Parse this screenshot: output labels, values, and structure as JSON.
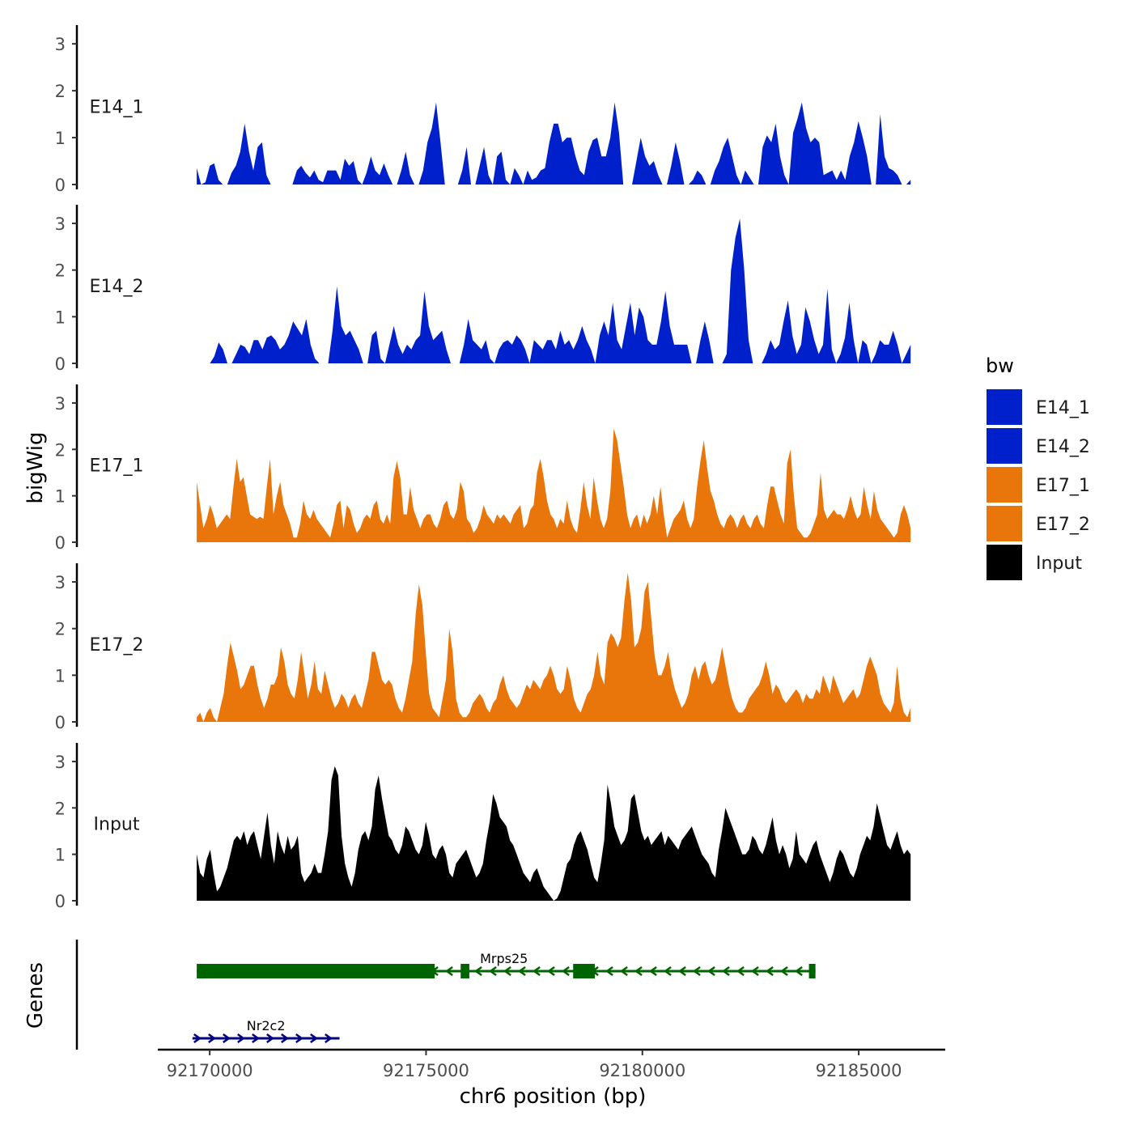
{
  "chart_data": {
    "type": "area",
    "figure_labels": {
      "ylabel": "bigWig",
      "genes_label": "Genes",
      "xlabel": "chr6 position (bp)",
      "legend_title": "bw"
    },
    "x_axis": {
      "range": [
        92168800,
        92187000
      ],
      "ticks": [
        92170000,
        92175000,
        92180000,
        92185000
      ],
      "tick_labels": [
        "92170000",
        "92175000",
        "92180000",
        "92185000"
      ]
    },
    "y_axis": {
      "range": [
        0,
        3.4
      ],
      "ticks": [
        0,
        1,
        2,
        3
      ],
      "tick_labels": [
        "0",
        "1",
        "2",
        "3"
      ]
    },
    "track_start": 92169700,
    "track_end": 92186200,
    "legend": [
      {
        "name": "E14_1",
        "color": "#0020cc"
      },
      {
        "name": "E14_2",
        "color": "#0020cc"
      },
      {
        "name": "E17_1",
        "color": "#e8760a"
      },
      {
        "name": "E17_2",
        "color": "#e8760a"
      },
      {
        "name": "Input",
        "color": "#000000"
      }
    ],
    "series": [
      {
        "name": "E14_1",
        "color": "#0020cc",
        "values": [
          0.35,
          0,
          0.05,
          0.4,
          0.45,
          0.1,
          0,
          0,
          0.25,
          0.4,
          0.7,
          1.3,
          0.7,
          0.3,
          0.8,
          0.9,
          0.2,
          0,
          0,
          0,
          0,
          0,
          0,
          0.3,
          0.4,
          0.25,
          0.15,
          0.3,
          0.1,
          0.05,
          0.3,
          0.3,
          0.3,
          0.1,
          0.55,
          0.4,
          0.5,
          0.1,
          0,
          0.25,
          0.6,
          0.3,
          0.2,
          0.45,
          0.2,
          0,
          0,
          0.3,
          0.7,
          0.2,
          0,
          0,
          0.3,
          0.9,
          1.2,
          1.75,
          0.9,
          0,
          0,
          0,
          0,
          0.3,
          0.8,
          0,
          0,
          0.4,
          0.8,
          0.2,
          0,
          0.6,
          0.7,
          0.1,
          0,
          0.35,
          0.2,
          0,
          0.3,
          0.1,
          0.15,
          0.3,
          0.35,
          0.9,
          1.3,
          1.3,
          0.9,
          1.0,
          1.0,
          0.6,
          0.3,
          0.2,
          0.7,
          0.95,
          1.0,
          0.6,
          0.6,
          1.0,
          1.75,
          1.1,
          0,
          0,
          0,
          0.5,
          1.0,
          0.6,
          0.4,
          0.5,
          0.2,
          0,
          0,
          0.4,
          0.9,
          0.5,
          0,
          0,
          0.1,
          0.3,
          0.2,
          0,
          0,
          0.3,
          0.5,
          0.8,
          1.0,
          0.6,
          0.2,
          0,
          0.3,
          0.15,
          0,
          0,
          0.8,
          1.05,
          0.9,
          1.3,
          0.6,
          0.2,
          0,
          1.1,
          1.4,
          1.75,
          1.2,
          0.9,
          1.0,
          0.9,
          0.2,
          0.25,
          0.3,
          0.1,
          0.3,
          0.1,
          0.6,
          0.9,
          1.35,
          1.0,
          0.6,
          0,
          0,
          1.5,
          0.6,
          0.35,
          0.3,
          0.2,
          0,
          0,
          0.1
        ]
      },
      {
        "name": "E14_2",
        "color": "#0020cc",
        "values": [
          0,
          0,
          0,
          0,
          0.15,
          0.45,
          0.3,
          0,
          0,
          0.2,
          0.4,
          0.35,
          0.2,
          0.5,
          0.5,
          0.3,
          0.55,
          0.6,
          0.5,
          0.3,
          0.4,
          0.6,
          0.9,
          0.75,
          0.6,
          0.95,
          0.4,
          0.1,
          0,
          0,
          0,
          0.7,
          1.65,
          0.8,
          0.6,
          0.7,
          0.5,
          0.3,
          0,
          0,
          0.6,
          0.7,
          0.1,
          0,
          0.4,
          0.8,
          0.4,
          0.2,
          0.4,
          0.3,
          0.5,
          0.6,
          1.55,
          0.8,
          0.5,
          0.6,
          0.7,
          0.3,
          0,
          0,
          0,
          0.4,
          0.95,
          0.5,
          0.4,
          0.3,
          0.5,
          0.1,
          0,
          0.3,
          0.45,
          0.5,
          0.4,
          0.6,
          0.5,
          0.3,
          0,
          0.5,
          0.4,
          0.3,
          0.5,
          0.5,
          0.3,
          0.7,
          0.4,
          0.5,
          0.3,
          0.5,
          0.8,
          0.5,
          0.3,
          0,
          0.6,
          0.9,
          0.6,
          1.3,
          0.5,
          0.3,
          0.8,
          1.3,
          0.6,
          1.2,
          1.0,
          0.5,
          0.4,
          0.4,
          0.9,
          1.55,
          0.8,
          0.4,
          0.4,
          0.4,
          0.4,
          0,
          0,
          0.5,
          0.9,
          0.5,
          0,
          0,
          0,
          0.2,
          2.0,
          2.7,
          3.1,
          2.0,
          0.5,
          0,
          0,
          0,
          0.2,
          0.5,
          0.3,
          0.4,
          0.9,
          1.35,
          0.6,
          0.2,
          0.4,
          1.2,
          0.9,
          0.5,
          0.2,
          0.4,
          1.6,
          0.3,
          0,
          0.2,
          0.55,
          1.3,
          0.5,
          0,
          0.5,
          0.4,
          0,
          0.2,
          0.5,
          0.4,
          0.4,
          0.7,
          0.4,
          0,
          0.2,
          0.4
        ]
      },
      {
        "name": "E17_1",
        "color": "#e8760a",
        "values": [
          1.3,
          0.8,
          0.3,
          0.5,
          0.8,
          0.6,
          0.3,
          0.4,
          0.5,
          0.6,
          0.5,
          1.2,
          1.8,
          1.3,
          1.4,
          1.0,
          0.6,
          0.55,
          0.5,
          0.55,
          0.5,
          1.2,
          1.8,
          0.6,
          1.0,
          1.3,
          0.8,
          0.6,
          0.4,
          0.1,
          0.1,
          0.4,
          0.9,
          0.6,
          0.5,
          0.7,
          0.5,
          0.4,
          0.3,
          0.2,
          0.1,
          0.4,
          0.8,
          0.9,
          0.3,
          0.8,
          0.7,
          0.4,
          0.2,
          0.3,
          0.5,
          0.6,
          0.5,
          0.8,
          0.9,
          0.5,
          0.4,
          0.6,
          0.4,
          1.4,
          1.75,
          1.4,
          0.6,
          0.6,
          1.2,
          0.7,
          0.5,
          0.3,
          0.5,
          0.6,
          0.6,
          0.4,
          0.3,
          0.5,
          0.8,
          0.9,
          0.6,
          0.5,
          0.7,
          1.3,
          1.1,
          0.5,
          0.4,
          0.2,
          0.3,
          0.5,
          0.8,
          0.6,
          0.5,
          0.4,
          0.6,
          0.5,
          0.6,
          0.5,
          0.4,
          0.6,
          0.7,
          0.8,
          0.3,
          0.4,
          0.7,
          0.8,
          1.5,
          1.8,
          1.4,
          0.9,
          0.6,
          0.5,
          0.3,
          0.5,
          0.4,
          0.9,
          0.5,
          0.3,
          0.2,
          0.7,
          1.3,
          0.8,
          0.5,
          1.4,
          0.9,
          0.5,
          0.3,
          0.5,
          1.1,
          2.45,
          2.2,
          1.7,
          1.2,
          0.6,
          0.3,
          0.5,
          0.6,
          0.3,
          0.6,
          0.4,
          0.6,
          1.0,
          0.6,
          1.2,
          0.6,
          0.1,
          0.3,
          0.5,
          0.6,
          0.7,
          0.9,
          0.5,
          0.3,
          0.5,
          1.2,
          1.75,
          2.2,
          1.6,
          1.1,
          0.9,
          0.6,
          0.4,
          0.3,
          0.5,
          0.6,
          0.5,
          0.3,
          0.5,
          0.6,
          0.4,
          0.3,
          0.5,
          0.6,
          0.4,
          0.3,
          0.8,
          1.2,
          1.2,
          0.9,
          0.6,
          0.4,
          1.7,
          2.0,
          1.0,
          0.3,
          0.2,
          0.1,
          0.1,
          0.2,
          0.4,
          0.6,
          1.5,
          0.7,
          0.5,
          0.6,
          0.7,
          0.6,
          0.6,
          0.5,
          0.7,
          1.0,
          0.7,
          0.5,
          0.6,
          1.2,
          0.8,
          0.5,
          1.1,
          0.7,
          0.5,
          0.4,
          0.3,
          0.2,
          0.1,
          0.2,
          0.6,
          0.8,
          0.6,
          0.3
        ]
      },
      {
        "name": "E17_2",
        "color": "#e8760a",
        "values": [
          0.1,
          0.2,
          0,
          0.2,
          0.3,
          0.1,
          0,
          0.3,
          0.6,
          1.2,
          1.7,
          1.4,
          1.1,
          0.7,
          0.8,
          1.0,
          1.2,
          1.2,
          0.8,
          0.5,
          0.3,
          0.5,
          0.8,
          0.8,
          1.0,
          1.6,
          1.3,
          0.8,
          0.6,
          0.5,
          0.9,
          1.5,
          1.0,
          0.5,
          0.8,
          1.3,
          0.7,
          0.6,
          1.1,
          0.8,
          0.5,
          0.3,
          0.4,
          0.6,
          0.5,
          0.3,
          0.5,
          0.6,
          0.4,
          0.3,
          0.6,
          0.9,
          1.5,
          1.5,
          1.2,
          0.9,
          0.8,
          0.9,
          0.8,
          0.5,
          0.3,
          0.2,
          0.5,
          0.9,
          1.3,
          2.3,
          2.95,
          2.5,
          1.5,
          0.6,
          0.3,
          0.2,
          0.1,
          0.5,
          0.9,
          2.0,
          1.5,
          0.5,
          0.2,
          0.1,
          0.1,
          0.2,
          0.4,
          0.5,
          0.6,
          0.5,
          0.3,
          0.2,
          0.4,
          0.5,
          0.8,
          1.0,
          0.7,
          0.5,
          0.4,
          0.3,
          0.4,
          0.6,
          0.8,
          0.7,
          0.9,
          0.8,
          0.7,
          0.9,
          1.0,
          1.2,
          1.0,
          0.7,
          0.6,
          0.7,
          1.2,
          0.9,
          0.5,
          0.3,
          0.2,
          0.4,
          0.6,
          0.7,
          1.0,
          1.5,
          1.0,
          0.8,
          1.7,
          1.9,
          1.8,
          1.6,
          1.8,
          2.6,
          3.2,
          2.6,
          1.6,
          1.7,
          2.0,
          2.8,
          3.0,
          2.2,
          1.4,
          1.0,
          1.0,
          1.2,
          1.5,
          1.0,
          0.7,
          0.5,
          0.3,
          0.4,
          0.6,
          1.0,
          1.2,
          0.9,
          1.2,
          1.3,
          1.0,
          0.8,
          0.9,
          1.2,
          1.6,
          1.2,
          0.8,
          0.5,
          0.3,
          0.2,
          0.2,
          0.3,
          0.5,
          0.6,
          0.7,
          0.8,
          1.0,
          1.3,
          1.0,
          0.6,
          0.8,
          0.7,
          0.5,
          0.4,
          0.5,
          0.6,
          0.7,
          0.6,
          0.4,
          0.6,
          0.5,
          0.5,
          0.7,
          0.6,
          1.0,
          0.8,
          0.6,
          1.0,
          0.8,
          0.6,
          0.4,
          0.5,
          0.6,
          0.7,
          0.5,
          0.6,
          0.9,
          1.2,
          1.4,
          1.2,
          1.0,
          0.6,
          0.4,
          0.3,
          0.2,
          0.4,
          1.2,
          0.5,
          0.2,
          0.1,
          0.3
        ]
      },
      {
        "name": "Input",
        "color": "#000000",
        "values": [
          1.0,
          0.6,
          0.5,
          0.9,
          1.1,
          0.6,
          0.2,
          0.3,
          0.5,
          0.7,
          1.0,
          1.3,
          1.4,
          1.3,
          1.5,
          1.2,
          1.4,
          1.5,
          1.2,
          0.9,
          1.4,
          1.9,
          1.2,
          0.8,
          1.5,
          1.2,
          1.0,
          1.4,
          1.1,
          1.2,
          1.4,
          0.6,
          0.4,
          0.5,
          0.6,
          0.8,
          0.6,
          0.6,
          1.0,
          1.5,
          2.6,
          2.9,
          2.7,
          1.4,
          0.8,
          0.5,
          0.3,
          0.6,
          1.1,
          1.4,
          1.5,
          1.3,
          1.6,
          2.4,
          2.7,
          2.2,
          1.8,
          1.4,
          1.3,
          1.1,
          1.0,
          1.2,
          1.6,
          1.5,
          1.3,
          1.1,
          1.0,
          1.2,
          1.7,
          1.4,
          1.0,
          0.9,
          1.1,
          1.2,
          1.0,
          0.6,
          0.5,
          0.8,
          0.9,
          1.0,
          1.1,
          0.9,
          0.7,
          0.5,
          0.6,
          0.8,
          1.3,
          1.7,
          2.3,
          2.1,
          1.8,
          1.7,
          1.6,
          1.3,
          1.2,
          1.0,
          0.8,
          0.6,
          0.5,
          0.4,
          0.6,
          0.7,
          0.5,
          0.3,
          0.2,
          0.1,
          0.0,
          0.05,
          0.2,
          0.5,
          0.8,
          0.9,
          1.2,
          1.4,
          1.5,
          1.3,
          1.1,
          0.8,
          0.5,
          0.4,
          0.8,
          1.3,
          2.5,
          2.1,
          1.6,
          1.4,
          1.2,
          1.3,
          1.5,
          2.2,
          2.3,
          1.9,
          1.5,
          1.3,
          1.4,
          1.2,
          1.3,
          1.4,
          1.5,
          1.2,
          1.4,
          1.3,
          1.2,
          1.1,
          1.3,
          1.4,
          1.5,
          1.6,
          1.4,
          1.2,
          1.0,
          0.9,
          0.8,
          0.6,
          0.5,
          1.1,
          1.5,
          2.0,
          1.8,
          1.6,
          1.4,
          1.2,
          1.0,
          1.0,
          1.1,
          1.4,
          1.3,
          1.1,
          1.0,
          1.2,
          1.5,
          1.8,
          1.3,
          1.0,
          1.2,
          1.0,
          0.7,
          0.9,
          1.5,
          1.0,
          0.9,
          0.8,
          1.0,
          1.2,
          1.3,
          1.0,
          0.8,
          0.6,
          0.4,
          0.6,
          0.9,
          1.1,
          1.0,
          0.8,
          0.6,
          0.5,
          0.7,
          1.0,
          1.2,
          1.4,
          1.3,
          1.6,
          2.1,
          1.8,
          1.5,
          1.2,
          1.1,
          1.3,
          1.5,
          1.2,
          1.0,
          1.1,
          1.0
        ]
      }
    ],
    "genes": [
      {
        "name": "Mrps25",
        "strand": "-",
        "color": "#006400",
        "row": 1,
        "start": 92169700,
        "end": 92184000,
        "exons": [
          [
            92169700,
            92175200
          ],
          [
            92175800,
            92176000
          ],
          [
            92178400,
            92178900
          ],
          [
            92183850,
            92184000
          ]
        ]
      },
      {
        "name": "Nr2c2",
        "strand": "+",
        "color": "#000080",
        "row": 2,
        "start": 92169600,
        "end": 92173000,
        "exons": []
      }
    ]
  }
}
